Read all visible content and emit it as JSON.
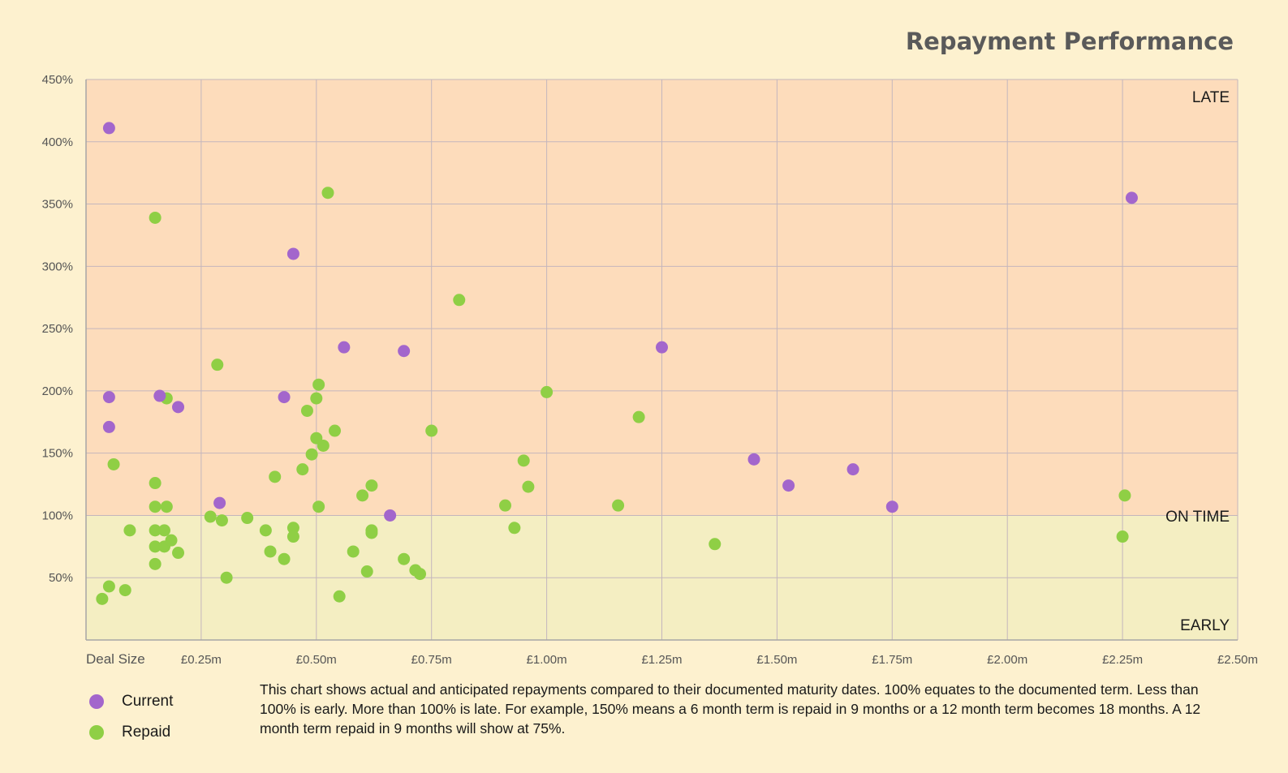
{
  "chart_data": {
    "type": "scatter",
    "title": "Repayment Performance",
    "xlabel": "Deal Size",
    "ylabel": "",
    "xlim": [
      0,
      2.5
    ],
    "ylim": [
      0,
      450
    ],
    "grid": true,
    "legend_position": "bottom-left",
    "x_ticks": [
      {
        "value": 0.25,
        "label": "£0.25m"
      },
      {
        "value": 0.5,
        "label": "£0.50m"
      },
      {
        "value": 0.75,
        "label": "£0.75m"
      },
      {
        "value": 1.0,
        "label": "£1.00m"
      },
      {
        "value": 1.25,
        "label": "£1.25m"
      },
      {
        "value": 1.5,
        "label": "£1.50m"
      },
      {
        "value": 1.75,
        "label": "£1.75m"
      },
      {
        "value": 2.0,
        "label": "£2.00m"
      },
      {
        "value": 2.25,
        "label": "£2.25m"
      },
      {
        "value": 2.5,
        "label": "£2.50m"
      }
    ],
    "y_ticks": [
      {
        "value": 50,
        "label": "50%"
      },
      {
        "value": 100,
        "label": "100%"
      },
      {
        "value": 150,
        "label": "150%"
      },
      {
        "value": 200,
        "label": "200%"
      },
      {
        "value": 250,
        "label": "250%"
      },
      {
        "value": 300,
        "label": "300%"
      },
      {
        "value": 350,
        "label": "350%"
      },
      {
        "value": 400,
        "label": "400%"
      },
      {
        "value": 450,
        "label": "450%"
      }
    ],
    "zones": {
      "late": "LATE",
      "on_time": "ON TIME",
      "early": "EARLY",
      "threshold": 100,
      "late_color": "#fddcbb",
      "early_color": "#f4eec2"
    },
    "series": [
      {
        "name": "Current",
        "color": "#a366cc",
        "points": [
          [
            0.05,
            411
          ],
          [
            0.05,
            195
          ],
          [
            0.05,
            171
          ],
          [
            0.16,
            196
          ],
          [
            0.2,
            187
          ],
          [
            0.29,
            110
          ],
          [
            0.43,
            195
          ],
          [
            0.45,
            310
          ],
          [
            0.56,
            235
          ],
          [
            0.66,
            100
          ],
          [
            0.69,
            232
          ],
          [
            1.25,
            235
          ],
          [
            1.45,
            145
          ],
          [
            1.525,
            124
          ],
          [
            1.665,
            137
          ],
          [
            1.75,
            107
          ],
          [
            2.27,
            355
          ]
        ]
      },
      {
        "name": "Repaid",
        "color": "#8fcf45",
        "points": [
          [
            0.035,
            33
          ],
          [
            0.05,
            43
          ],
          [
            0.06,
            141
          ],
          [
            0.085,
            40
          ],
          [
            0.095,
            88
          ],
          [
            0.15,
            339
          ],
          [
            0.15,
            126
          ],
          [
            0.15,
            107
          ],
          [
            0.15,
            88
          ],
          [
            0.15,
            75
          ],
          [
            0.15,
            61
          ],
          [
            0.17,
            88
          ],
          [
            0.17,
            75
          ],
          [
            0.175,
            194
          ],
          [
            0.175,
            107
          ],
          [
            0.185,
            80
          ],
          [
            0.2,
            70
          ],
          [
            0.27,
            99
          ],
          [
            0.285,
            221
          ],
          [
            0.295,
            96
          ],
          [
            0.305,
            50
          ],
          [
            0.35,
            98
          ],
          [
            0.39,
            88
          ],
          [
            0.4,
            71
          ],
          [
            0.41,
            131
          ],
          [
            0.43,
            65
          ],
          [
            0.45,
            90
          ],
          [
            0.45,
            83
          ],
          [
            0.47,
            137
          ],
          [
            0.48,
            184
          ],
          [
            0.49,
            149
          ],
          [
            0.5,
            162
          ],
          [
            0.5,
            194
          ],
          [
            0.505,
            205
          ],
          [
            0.505,
            107
          ],
          [
            0.515,
            156
          ],
          [
            0.525,
            359
          ],
          [
            0.54,
            168
          ],
          [
            0.55,
            35
          ],
          [
            0.58,
            71
          ],
          [
            0.6,
            116
          ],
          [
            0.61,
            55
          ],
          [
            0.62,
            124
          ],
          [
            0.62,
            88
          ],
          [
            0.62,
            86
          ],
          [
            0.69,
            65
          ],
          [
            0.715,
            56
          ],
          [
            0.725,
            53
          ],
          [
            0.75,
            168
          ],
          [
            0.81,
            273
          ],
          [
            0.91,
            108
          ],
          [
            0.93,
            90
          ],
          [
            0.95,
            144
          ],
          [
            0.96,
            123
          ],
          [
            1.0,
            199
          ],
          [
            1.155,
            108
          ],
          [
            1.2,
            179
          ],
          [
            1.365,
            77
          ],
          [
            2.25,
            83
          ],
          [
            2.255,
            116
          ]
        ]
      }
    ],
    "annotation": "This chart shows actual and anticipated repayments compared to their documented maturity dates.  100% equates to the documented term.  Less than 100% is early.  More than 100% is late.  For example, 150% means a 6 month term is repaid in 9 months or a 12 month term becomes 18 months.  A 12 month term repaid in 9 months will show at 75%."
  }
}
